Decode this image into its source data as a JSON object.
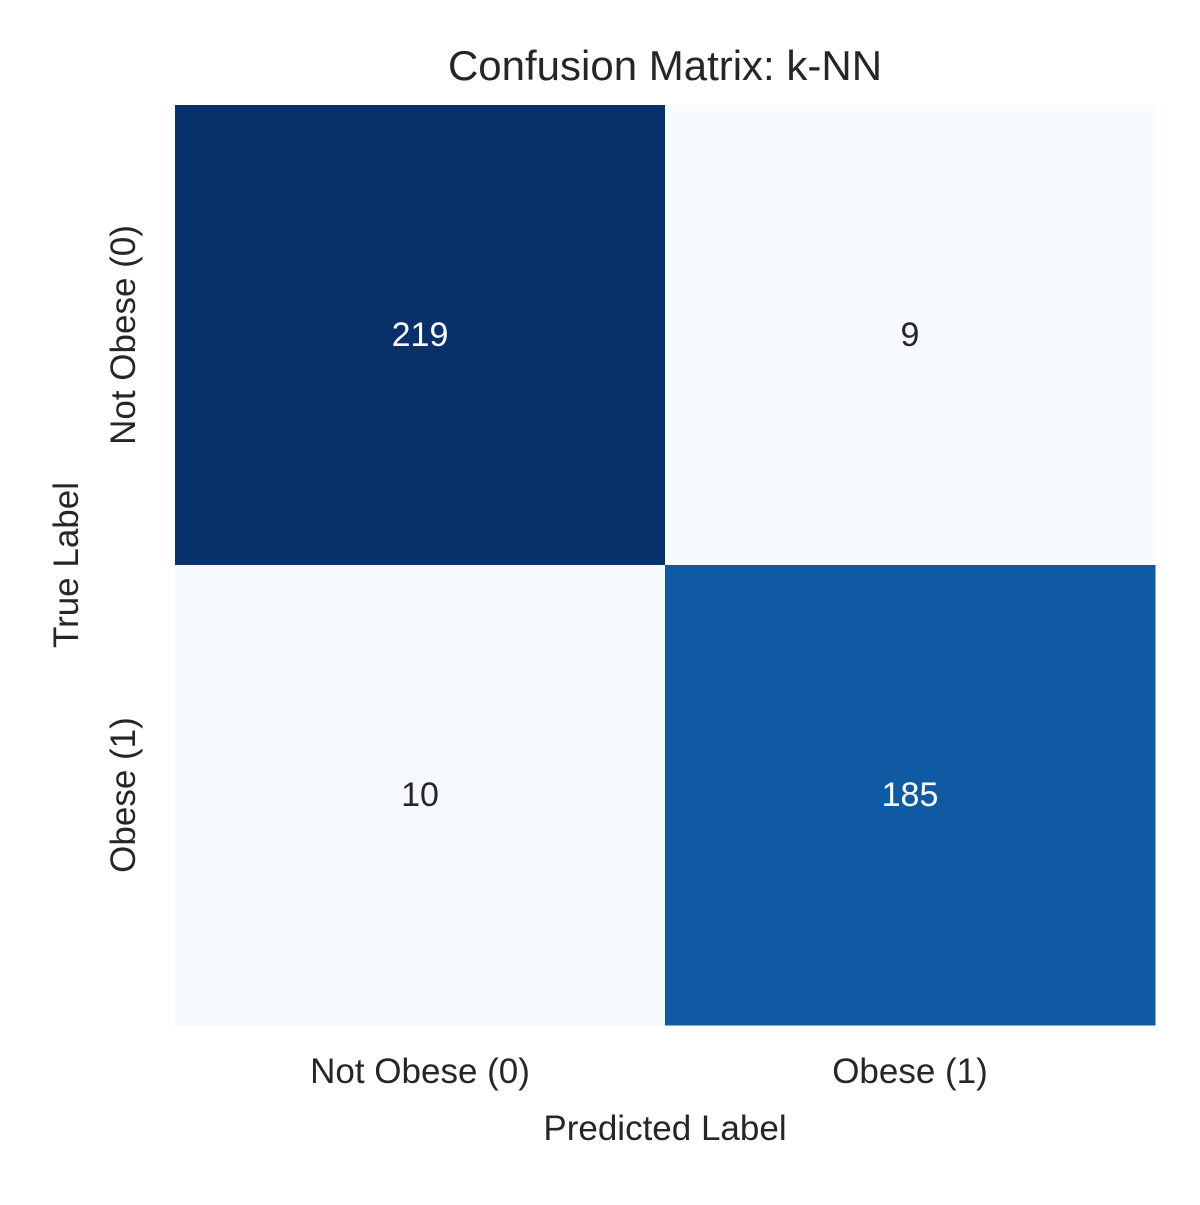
{
  "chart_data": {
    "type": "heatmap",
    "title": "Confusion Matrix: k-NN",
    "xlabel": "Predicted Label",
    "ylabel": "True Label",
    "x_categories": [
      "Not Obese (0)",
      "Obese (1)"
    ],
    "y_categories": [
      "Not Obese (0)",
      "Obese (1)"
    ],
    "values": [
      [
        219,
        9
      ],
      [
        10,
        185
      ]
    ],
    "colormap": "Blues",
    "colors": {
      "low": "#f7fbff",
      "mid": "#6aaed6",
      "high": "#08306b",
      "text_dark": "#262626",
      "text_light": "#ffffff"
    },
    "grid": false,
    "colorbar": false
  }
}
